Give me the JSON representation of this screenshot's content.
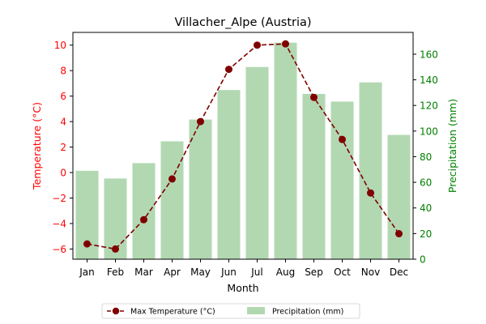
{
  "chart_data": {
    "type": "bar+line",
    "title": "Villacher_Alpe (Austria)",
    "xlabel": "Month",
    "ylabel_left": "Temperature (°C)",
    "ylabel_right": "Precipitation (mm)",
    "categories": [
      "Jan",
      "Feb",
      "Mar",
      "Apr",
      "May",
      "Jun",
      "Jul",
      "Aug",
      "Sep",
      "Oct",
      "Nov",
      "Dec"
    ],
    "ylim_left": [
      -6.8,
      11.0
    ],
    "ylim_right": [
      0,
      177
    ],
    "yticks_left": [
      -6,
      -4,
      -2,
      0,
      2,
      4,
      6,
      8,
      10
    ],
    "yticks_right": [
      0,
      20,
      40,
      60,
      80,
      100,
      120,
      140,
      160
    ],
    "series": [
      {
        "name": "Max Temperature (°C)",
        "kind": "line",
        "axis": "left",
        "values": [
          -5.6,
          -6.0,
          -3.7,
          -0.5,
          4.0,
          8.1,
          10.0,
          10.1,
          5.9,
          2.6,
          -1.6,
          -4.8
        ],
        "color": "#800000",
        "marker": "circle",
        "linestyle": "dashed"
      },
      {
        "name": "Precipitation (mm)",
        "kind": "bar",
        "axis": "right",
        "values": [
          69,
          63,
          75,
          92,
          109,
          132,
          150,
          169,
          129,
          123,
          138,
          97
        ],
        "color": "#b2d8b2"
      }
    ],
    "left_axis_color": "#ff0000",
    "right_axis_color": "#008000",
    "legend": "bottom-center",
    "grid": false
  }
}
